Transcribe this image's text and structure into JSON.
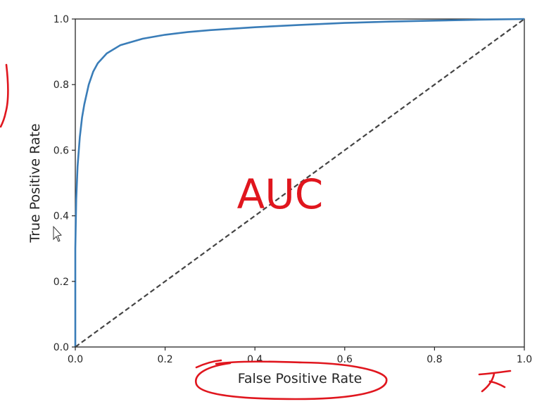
{
  "colors": {
    "background": "#ffffff",
    "axes": "#262626",
    "roc_curve": "#3a7db8",
    "reference_line": "#444444",
    "annotation": "#e0161e"
  },
  "annotation": {
    "text": "AUC"
  },
  "chart_data": {
    "type": "line",
    "title": "",
    "xlabel": "False Positive Rate",
    "ylabel": "True Positive Rate",
    "xlim": [
      0.0,
      1.0
    ],
    "ylim": [
      0.0,
      1.0
    ],
    "xticks": [
      "0.0",
      "0.2",
      "0.4",
      "0.6",
      "0.8",
      "1.0"
    ],
    "yticks": [
      "0.0",
      "0.2",
      "0.4",
      "0.6",
      "0.8",
      "1.0"
    ],
    "grid": false,
    "legend": "none",
    "series": [
      {
        "style": "solid",
        "color": "#3a7db8",
        "x": [
          0.0,
          0.0,
          0.002,
          0.005,
          0.01,
          0.015,
          0.02,
          0.03,
          0.04,
          0.05,
          0.07,
          0.1,
          0.15,
          0.2,
          0.25,
          0.3,
          0.4,
          0.5,
          0.6,
          0.7,
          0.8,
          0.9,
          1.0
        ],
        "y": [
          0.0,
          0.3,
          0.45,
          0.55,
          0.64,
          0.7,
          0.74,
          0.8,
          0.84,
          0.865,
          0.895,
          0.92,
          0.94,
          0.952,
          0.96,
          0.966,
          0.975,
          0.982,
          0.988,
          0.992,
          0.995,
          0.998,
          1.0
        ]
      },
      {
        "style": "dashed",
        "color": "#444444",
        "x": [
          0.0,
          1.0
        ],
        "y": [
          0.0,
          1.0
        ]
      }
    ]
  }
}
